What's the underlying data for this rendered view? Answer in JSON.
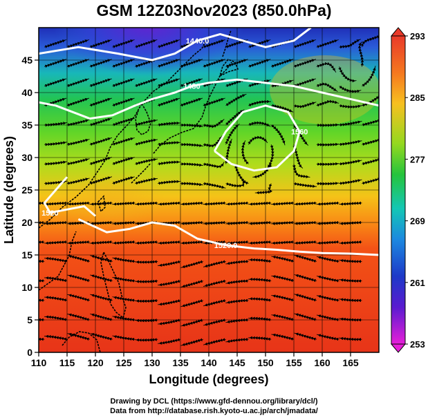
{
  "title": "GSM 12Z03Nov2023 (850.0hPa)",
  "xlabel": "Longitude (degrees)",
  "ylabel": "Latitude  (degrees)",
  "x_ticks": [
    "110",
    "115",
    "120",
    "125",
    "130",
    "135",
    "140",
    "145",
    "150",
    "155",
    "160",
    "165"
  ],
  "y_ticks": [
    "0",
    "5",
    "10",
    "15",
    "20",
    "25",
    "30",
    "35",
    "40",
    "45"
  ],
  "colorbar": {
    "labels": [
      "293",
      "285",
      "277",
      "269",
      "261",
      "253"
    ],
    "min": 253,
    "max": 293
  },
  "contour_labels": [
    "1440.0",
    "1480",
    "1560",
    "1520.0",
    "1520"
  ],
  "credits": {
    "line1": "Drawing by DCL (https://www.gfd-dennou.org/library/dcl/)",
    "line2": "Data from http://database.rish.kyoto-u.ac.jp/arch/jmadata/"
  },
  "chart_data": {
    "type": "heatmap",
    "title": "GSM 12Z03Nov2023 (850.0hPa)",
    "xlabel": "Longitude (degrees)",
    "ylabel": "Latitude  (degrees)",
    "xlim": [
      110,
      170
    ],
    "ylim": [
      0,
      50
    ],
    "color_range": [
      253,
      293
    ],
    "grid": true,
    "overlays": [
      "coastlines",
      "streamlines",
      "geopotential height contours (white)"
    ],
    "contours": [
      {
        "label": "1440.0",
        "points": [
          [
            110,
            46
          ],
          [
            117,
            47
          ],
          [
            124,
            46
          ],
          [
            127,
            45.5
          ],
          [
            130,
            45
          ],
          [
            134,
            46
          ],
          [
            138,
            48
          ],
          [
            142,
            49
          ],
          [
            146,
            48
          ],
          [
            150,
            47
          ],
          [
            155,
            48
          ],
          [
            158,
            50
          ]
        ]
      },
      {
        "label": "1480",
        "points": [
          [
            110,
            38.5
          ],
          [
            113,
            38
          ],
          [
            116,
            37
          ],
          [
            119,
            36
          ],
          [
            123,
            36.5
          ],
          [
            127,
            38
          ],
          [
            130,
            39
          ],
          [
            134,
            40
          ],
          [
            137,
            41
          ],
          [
            140,
            41.5
          ],
          [
            145,
            42
          ],
          [
            150,
            41.5
          ],
          [
            155,
            41
          ],
          [
            160,
            40
          ],
          [
            165,
            39
          ],
          [
            170,
            38
          ]
        ]
      },
      {
        "label": "1560",
        "points": [
          [
            141,
            31
          ],
          [
            143,
            34
          ],
          [
            146,
            37
          ],
          [
            150,
            38
          ],
          [
            154,
            37
          ],
          [
            156,
            34
          ],
          [
            155,
            31
          ],
          [
            152,
            28.5
          ],
          [
            148,
            28
          ],
          [
            144,
            29
          ],
          [
            141,
            31
          ]
        ]
      },
      {
        "label": "1520.0",
        "points": [
          [
            117,
            20.5
          ],
          [
            122,
            18.5
          ],
          [
            126,
            19
          ],
          [
            130,
            20
          ],
          [
            134,
            19.5
          ],
          [
            138,
            17.5
          ],
          [
            143,
            16.5
          ],
          [
            148,
            16
          ],
          [
            152,
            15.8
          ],
          [
            156,
            15.5
          ],
          [
            160,
            15.3
          ],
          [
            165,
            15.2
          ],
          [
            170,
            15
          ]
        ]
      },
      {
        "label": "1520",
        "points": [
          [
            115,
            27
          ],
          [
            113,
            25
          ],
          [
            111,
            23
          ],
          [
            112,
            21.5
          ],
          [
            115,
            22
          ],
          [
            118,
            22.5
          ],
          [
            120,
            21
          ]
        ]
      }
    ]
  }
}
